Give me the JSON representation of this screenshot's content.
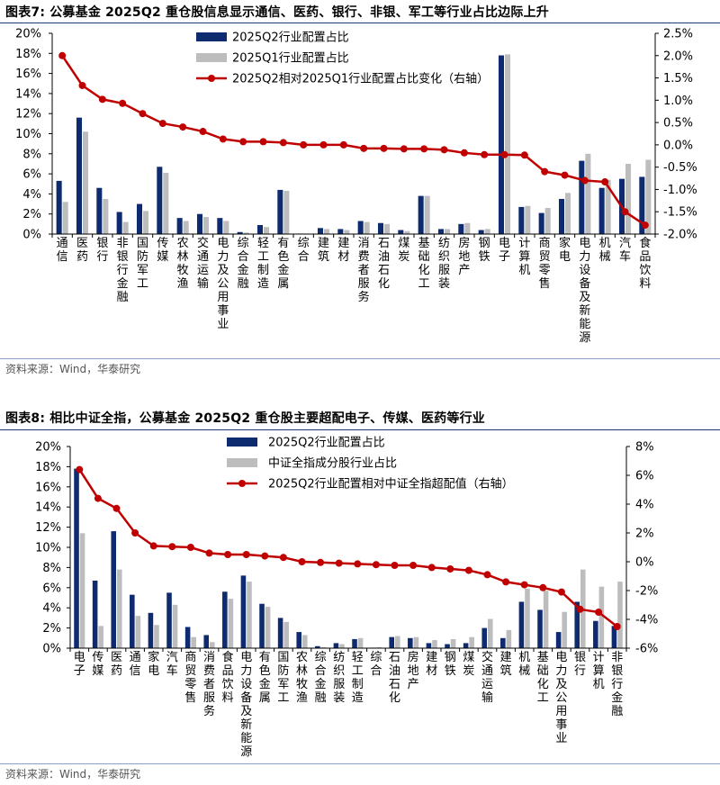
{
  "figures": [
    {
      "title": "图表7:  公募基金 2025Q2 重仓股信息显示通信、医药、银行、非银、军工等行业占比边际上升",
      "source": "资料来源：Wind，华泰研究"
    },
    {
      "title": "图表8:  相比中证全指，公募基金 2025Q2 重仓股主要超配电子、传媒、医药等行业",
      "source": "资料来源：Wind，华泰研究"
    }
  ],
  "chart_data": [
    {
      "type": "bar",
      "title": "公募基金 2025Q2 重仓股信息显示通信、医药、银行、非银、军工等行业占比边际上升",
      "categories": [
        "通信",
        "医药",
        "银行",
        "非银行金融",
        "国防军工",
        "传媒",
        "农林牧渔",
        "交通运输",
        "电力及公用事业",
        "综合金融",
        "轻工制造",
        "有色金属",
        "综合",
        "建筑",
        "建材",
        "消费者服务",
        "石油石化",
        "煤炭",
        "基础化工",
        "纺织服装",
        "房地产",
        "钢铁",
        "电子",
        "计算机",
        "商贸零售",
        "家电",
        "电力设备及新能源",
        "机械",
        "汽车",
        "食品饮料"
      ],
      "series": [
        {
          "name": "2025Q2行业配置占比",
          "axis": "left",
          "color": "#0d2b6e",
          "values": [
            5.3,
            11.6,
            4.6,
            2.2,
            3.0,
            6.7,
            1.6,
            2.0,
            1.6,
            0.2,
            0.9,
            4.4,
            0.05,
            0.6,
            0.5,
            1.3,
            1.1,
            0.4,
            3.8,
            0.5,
            1.0,
            0.4,
            17.8,
            2.7,
            2.1,
            3.5,
            7.3,
            4.6,
            5.5,
            5.7
          ]
        },
        {
          "name": "2025Q1行业配置占比",
          "axis": "left",
          "color": "#bdbdbd",
          "values": [
            3.2,
            10.2,
            3.5,
            1.2,
            2.3,
            6.1,
            1.3,
            1.7,
            1.3,
            0.15,
            0.7,
            4.3,
            0.05,
            0.5,
            0.4,
            1.2,
            1.0,
            0.3,
            3.8,
            0.5,
            1.1,
            0.5,
            17.9,
            2.8,
            2.6,
            4.1,
            8.0,
            5.4,
            7.0,
            7.4
          ]
        },
        {
          "name": "2025Q2相对2025Q1行业配置占比变化（右轴）",
          "axis": "right",
          "type": "line",
          "color": "#c00000",
          "values": [
            2.0,
            1.33,
            1.02,
            0.93,
            0.7,
            0.48,
            0.4,
            0.3,
            0.13,
            0.07,
            0.07,
            0.05,
            0.0,
            0.0,
            0.0,
            -0.08,
            -0.08,
            -0.09,
            -0.09,
            -0.11,
            -0.18,
            -0.22,
            -0.22,
            -0.23,
            -0.6,
            -0.68,
            -0.8,
            -0.83,
            -1.5,
            -1.8
          ]
        }
      ],
      "ylim": [
        0,
        20
      ],
      "yticks": [
        "0%",
        "2%",
        "4%",
        "6%",
        "8%",
        "10%",
        "12%",
        "14%",
        "16%",
        "18%",
        "20%"
      ],
      "y2lim": [
        -2.0,
        2.5
      ],
      "y2ticks": [
        "-2.0%",
        "-1.5%",
        "-1.0%",
        "-0.5%",
        "0.0%",
        "0.5%",
        "1.0%",
        "1.5%",
        "2.0%",
        "2.5%"
      ],
      "legend": "top-center"
    },
    {
      "type": "bar",
      "title": "相比中证全指，公募基金 2025Q2 重仓股主要超配电子、传媒、医药等行业",
      "categories": [
        "电子",
        "传媒",
        "医药",
        "通信",
        "家电",
        "汽车",
        "商贸零售",
        "消费者服务",
        "食品饮料",
        "电力设备及新能源",
        "有色金属",
        "国防军工",
        "农林牧渔",
        "综合金融",
        "纺织服装",
        "轻工制造",
        "综合",
        "石油石化",
        "房地产",
        "建材",
        "钢铁",
        "煤炭",
        "交通运输",
        "建筑",
        "机械",
        "基础化工",
        "电力及公用事业",
        "银行",
        "计算机",
        "非银行金融"
      ],
      "series": [
        {
          "name": "2025Q2行业配置占比",
          "axis": "left",
          "color": "#0d2b6e",
          "values": [
            17.8,
            6.7,
            11.6,
            5.3,
            3.5,
            5.5,
            2.1,
            1.3,
            5.6,
            7.2,
            4.4,
            3.0,
            1.6,
            0.2,
            0.5,
            0.9,
            0.05,
            1.1,
            1.0,
            0.5,
            0.4,
            0.5,
            2.0,
            1.0,
            4.6,
            3.8,
            1.6,
            4.6,
            2.7,
            2.2
          ]
        },
        {
          "name": "中证全指成分股行业占比",
          "axis": "left",
          "color": "#bdbdbd",
          "values": [
            11.4,
            2.2,
            7.8,
            3.2,
            2.3,
            4.3,
            1.1,
            0.6,
            4.9,
            6.6,
            4.1,
            2.6,
            1.3,
            0.1,
            0.4,
            1.0,
            0.1,
            1.2,
            1.1,
            0.8,
            0.9,
            1.1,
            2.9,
            1.8,
            5.9,
            5.7,
            3.6,
            7.8,
            6.1,
            6.6
          ]
        },
        {
          "name": "2025Q2行业配置相对中证全指超配值（右轴）",
          "axis": "right",
          "type": "line",
          "color": "#c00000",
          "values": [
            6.4,
            4.4,
            3.7,
            2.0,
            1.1,
            1.05,
            1.0,
            0.6,
            0.5,
            0.5,
            0.4,
            0.3,
            0.0,
            -0.05,
            -0.1,
            -0.15,
            -0.2,
            -0.25,
            -0.25,
            -0.4,
            -0.5,
            -0.6,
            -0.9,
            -1.4,
            -1.6,
            -1.8,
            -2.1,
            -3.3,
            -3.5,
            -4.5
          ]
        }
      ],
      "ylim": [
        0,
        20
      ],
      "yticks": [
        "0%",
        "2%",
        "4%",
        "6%",
        "8%",
        "10%",
        "12%",
        "14%",
        "16%",
        "18%",
        "20%"
      ],
      "y2lim": [
        -6,
        8
      ],
      "y2ticks": [
        "-6%",
        "-4%",
        "-2%",
        "0%",
        "2%",
        "4%",
        "6%",
        "8%"
      ],
      "legend": "top-center"
    }
  ]
}
